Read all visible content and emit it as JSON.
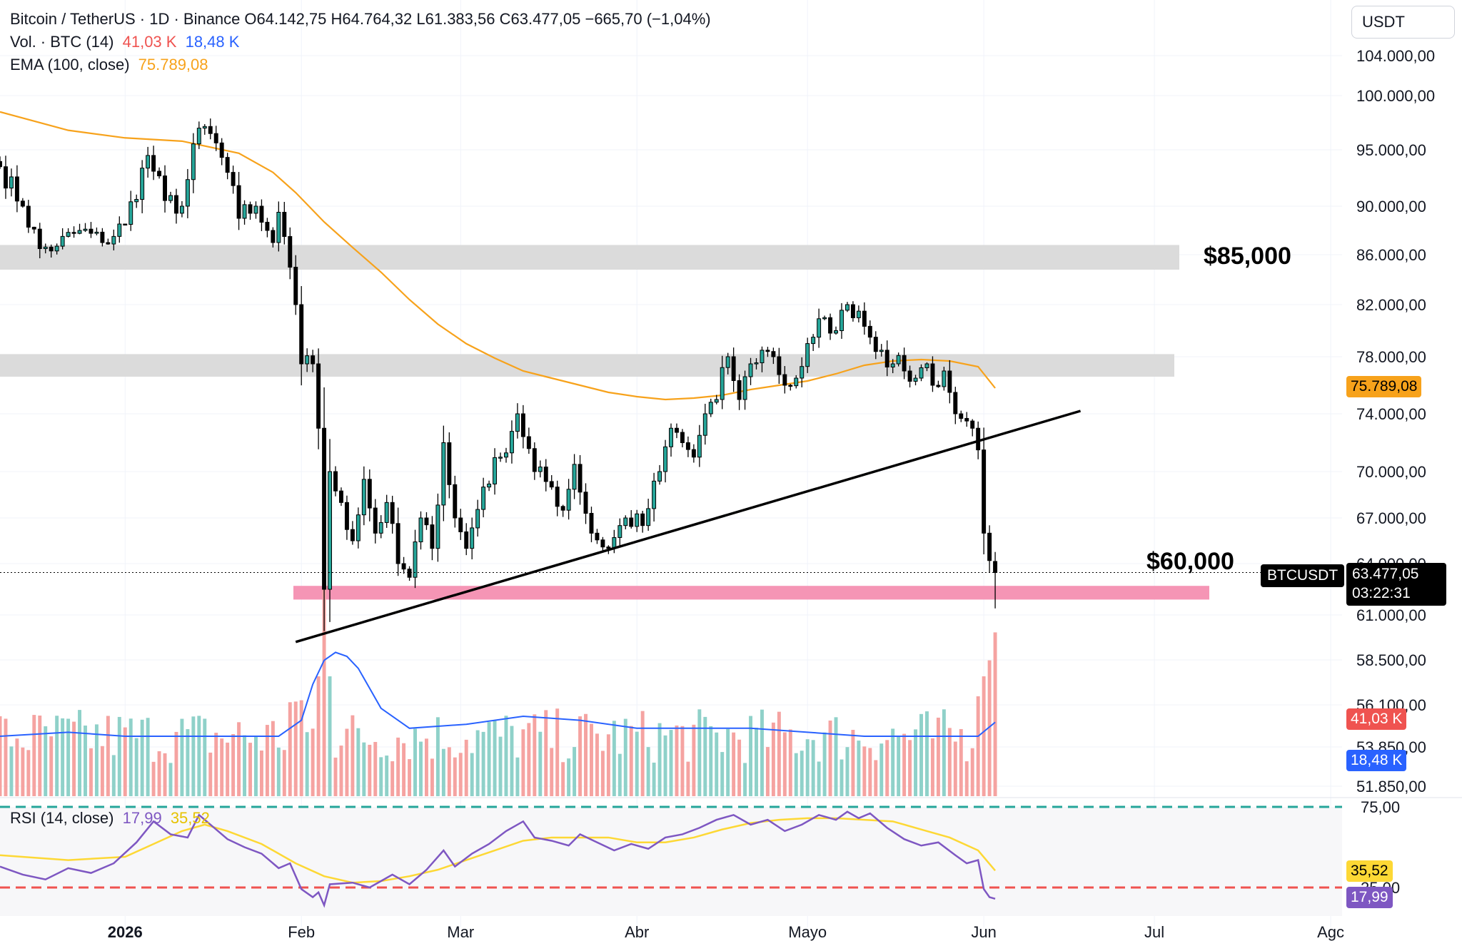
{
  "legend": {
    "symbol": "Bitcoin / TetherUS · 1D · Binance",
    "ohlc": "O64.142,75  H64.764,32  L61.383,56  C63.477,05  −665,70 (−1,04%)",
    "vol_label": "Vol. · BTC (14)",
    "vol_value": "41,03 K",
    "vol_ma": "18,48 K",
    "ema_label": "EMA (100, close)",
    "ema_value": "75.789,08",
    "rsi_label": "RSI (14, close)",
    "rsi_value": "17,99",
    "rsi_ma": "35,52"
  },
  "currency": "USDT",
  "annotations": {
    "level_high": "$85,000",
    "level_low": "$60,000"
  },
  "tags": {
    "ema": "75.789,08",
    "symbol": "BTCUSDT",
    "price": "63.477,05",
    "countdown": "03:22:31",
    "vol": "41,03 K",
    "vol_ma": "18,48 K",
    "rsi_ma": "35,52",
    "rsi": "17,99"
  },
  "colors": {
    "up": "#26a69a",
    "down": "#ef5350",
    "ema": "#f7a21b",
    "rsi": "#7e57c2",
    "rsi_ma": "#fdd835",
    "vol_ma": "#2962ff",
    "zone_grey": "#d9d9d9",
    "zone_pink": "#f48fb1"
  },
  "chart_data": {
    "type": "candlestick",
    "x_ticks": [
      {
        "label": "2026",
        "x": 0,
        "bold": true
      },
      {
        "label": "Feb",
        "x": 31
      },
      {
        "label": "Mar",
        "x": 59
      },
      {
        "label": "Abr",
        "x": 90
      },
      {
        "label": "Mayo",
        "x": 120
      },
      {
        "label": "Jun",
        "x": 151
      },
      {
        "label": "Jul",
        "x": 181
      },
      {
        "label": "Agc",
        "x": 212
      }
    ],
    "x_range": [
      -22,
      214
    ],
    "y_ticks": [
      {
        "value": 104000,
        "label": "104.000,00"
      },
      {
        "value": 100000,
        "label": "100.000,00"
      },
      {
        "value": 95000,
        "label": "95.000,00"
      },
      {
        "value": 90000,
        "label": "90.000,00"
      },
      {
        "value": 86000,
        "label": "86.000,00"
      },
      {
        "value": 82000,
        "label": "82.000,00"
      },
      {
        "value": 78000,
        "label": "78.000,00"
      },
      {
        "value": 74000,
        "label": "74.000,00"
      },
      {
        "value": 70000,
        "label": "70.000,00"
      },
      {
        "value": 67000,
        "label": "67.000,00"
      },
      {
        "value": 64000,
        "label": "64.000,00"
      },
      {
        "value": 61000,
        "label": "61.000,00"
      },
      {
        "value": 58500,
        "label": "58.500,00"
      },
      {
        "value": 56100,
        "label": "56.100,00"
      },
      {
        "value": 53850,
        "label": "53.850,00"
      },
      {
        "value": 51850,
        "label": "51.850,00"
      }
    ],
    "rsi_ticks": [
      {
        "value": 75,
        "label": "75,00"
      },
      {
        "value": 25,
        "label": "25,00"
      }
    ],
    "zones": [
      {
        "from": 84800,
        "to": 86800,
        "color": "#d9d9d9"
      },
      {
        "from": 76600,
        "to": 78200,
        "color": "#d9d9d9"
      },
      {
        "from": 61900,
        "to": 62700,
        "color": "#f48fb1"
      }
    ],
    "trendline": {
      "x1": 30,
      "y1": 59500,
      "x2": 168,
      "y2": 74200
    },
    "last_close": 63477.05,
    "anchors": [
      {
        "x": -22,
        "c": 93500
      },
      {
        "x": -18,
        "c": 90000
      },
      {
        "x": -15,
        "c": 86500
      },
      {
        "x": -12,
        "c": 86700
      },
      {
        "x": -8,
        "c": 88000
      },
      {
        "x": -4,
        "c": 87000
      },
      {
        "x": 0,
        "c": 88500
      },
      {
        "x": 4,
        "c": 94500
      },
      {
        "x": 7,
        "c": 90500
      },
      {
        "x": 10,
        "c": 90000
      },
      {
        "x": 13,
        "c": 97000
      },
      {
        "x": 15,
        "c": 96500
      },
      {
        "x": 18,
        "c": 93000
      },
      {
        "x": 20,
        "c": 89000
      },
      {
        "x": 23,
        "c": 90000
      },
      {
        "x": 25,
        "c": 88000
      },
      {
        "x": 26,
        "c": 87000
      },
      {
        "x": 27,
        "c": 89500
      },
      {
        "x": 28,
        "c": 87500
      },
      {
        "x": 29,
        "c": 85000
      },
      {
        "x": 30,
        "c": 82000
      },
      {
        "x": 31,
        "c": 77500
      },
      {
        "x": 33,
        "c": 77500
      },
      {
        "x": 34,
        "c": 73000
      },
      {
        "x": 35,
        "c": 62500
      },
      {
        "x": 36,
        "c": 70000
      },
      {
        "x": 38,
        "c": 68000
      },
      {
        "x": 40,
        "c": 65500
      },
      {
        "x": 42,
        "c": 69500
      },
      {
        "x": 44,
        "c": 66000
      },
      {
        "x": 46,
        "c": 68000
      },
      {
        "x": 48,
        "c": 64000
      },
      {
        "x": 50,
        "c": 63200
      },
      {
        "x": 52,
        "c": 67000
      },
      {
        "x": 54,
        "c": 65000
      },
      {
        "x": 56,
        "c": 72000
      },
      {
        "x": 58,
        "c": 67000
      },
      {
        "x": 60,
        "c": 65000
      },
      {
        "x": 63,
        "c": 69000
      },
      {
        "x": 66,
        "c": 71000
      },
      {
        "x": 69,
        "c": 74000
      },
      {
        "x": 72,
        "c": 70000
      },
      {
        "x": 75,
        "c": 69000
      },
      {
        "x": 77,
        "c": 67500
      },
      {
        "x": 79,
        "c": 70500
      },
      {
        "x": 82,
        "c": 66000
      },
      {
        "x": 85,
        "c": 65000
      },
      {
        "x": 88,
        "c": 67000
      },
      {
        "x": 91,
        "c": 66500
      },
      {
        "x": 94,
        "c": 70000
      },
      {
        "x": 96,
        "c": 73000
      },
      {
        "x": 98,
        "c": 72000
      },
      {
        "x": 100,
        "c": 71000
      },
      {
        "x": 102,
        "c": 74000
      },
      {
        "x": 104,
        "c": 75000
      },
      {
        "x": 106,
        "c": 78000
      },
      {
        "x": 108,
        "c": 75000
      },
      {
        "x": 110,
        "c": 77500
      },
      {
        "x": 112,
        "c": 78500
      },
      {
        "x": 114,
        "c": 78000
      },
      {
        "x": 116,
        "c": 76000
      },
      {
        "x": 118,
        "c": 76500
      },
      {
        "x": 121,
        "c": 79500
      },
      {
        "x": 123,
        "c": 81000
      },
      {
        "x": 125,
        "c": 80000
      },
      {
        "x": 127,
        "c": 82000
      },
      {
        "x": 129,
        "c": 81500
      },
      {
        "x": 131,
        "c": 79500
      },
      {
        "x": 133,
        "c": 78500
      },
      {
        "x": 135,
        "c": 77500
      },
      {
        "x": 137,
        "c": 77000
      },
      {
        "x": 139,
        "c": 76500
      },
      {
        "x": 141,
        "c": 77500
      },
      {
        "x": 142,
        "c": 76000
      },
      {
        "x": 144,
        "c": 77000
      },
      {
        "x": 145,
        "c": 75500
      },
      {
        "x": 146,
        "c": 74000
      },
      {
        "x": 148,
        "c": 73500
      },
      {
        "x": 149,
        "c": 73000
      },
      {
        "x": 150,
        "c": 71500
      },
      {
        "x": 151,
        "c": 66000
      },
      {
        "x": 152,
        "c": 64200
      },
      {
        "x": 153,
        "c": 63477
      }
    ],
    "ema": [
      [
        -22,
        98500
      ],
      [
        -10,
        96800
      ],
      [
        0,
        96100
      ],
      [
        10,
        95800
      ],
      [
        20,
        94700
      ],
      [
        26,
        93000
      ],
      [
        30,
        91200
      ],
      [
        35,
        88700
      ],
      [
        40,
        86600
      ],
      [
        45,
        84600
      ],
      [
        50,
        82400
      ],
      [
        55,
        80500
      ],
      [
        60,
        79000
      ],
      [
        65,
        77900
      ],
      [
        70,
        77000
      ],
      [
        75,
        76500
      ],
      [
        80,
        76000
      ],
      [
        85,
        75500
      ],
      [
        90,
        75200
      ],
      [
        95,
        75000
      ],
      [
        100,
        75100
      ],
      [
        105,
        75300
      ],
      [
        110,
        75700
      ],
      [
        115,
        76000
      ],
      [
        120,
        76300
      ],
      [
        125,
        76800
      ],
      [
        130,
        77400
      ],
      [
        135,
        77700
      ],
      [
        140,
        77800
      ],
      [
        145,
        77700
      ],
      [
        150,
        77300
      ],
      [
        153,
        75800
      ]
    ],
    "rsi": [
      [
        -22,
        38
      ],
      [
        -18,
        33
      ],
      [
        -14,
        30
      ],
      [
        -10,
        37
      ],
      [
        -6,
        34
      ],
      [
        -2,
        40
      ],
      [
        2,
        53
      ],
      [
        5,
        66
      ],
      [
        8,
        58
      ],
      [
        11,
        56
      ],
      [
        13,
        70
      ],
      [
        15,
        64
      ],
      [
        18,
        55
      ],
      [
        21,
        50
      ],
      [
        24,
        46
      ],
      [
        27,
        37
      ],
      [
        29,
        40
      ],
      [
        31,
        24
      ],
      [
        33,
        19
      ],
      [
        34,
        22
      ],
      [
        35,
        14
      ],
      [
        36,
        27
      ],
      [
        40,
        28
      ],
      [
        43,
        25
      ],
      [
        47,
        33
      ],
      [
        50,
        27
      ],
      [
        53,
        36
      ],
      [
        56,
        48
      ],
      [
        58,
        38
      ],
      [
        61,
        46
      ],
      [
        64,
        52
      ],
      [
        67,
        60
      ],
      [
        70,
        66
      ],
      [
        72,
        56
      ],
      [
        75,
        54
      ],
      [
        78,
        51
      ],
      [
        80,
        58
      ],
      [
        83,
        53
      ],
      [
        86,
        48
      ],
      [
        89,
        52
      ],
      [
        92,
        49
      ],
      [
        95,
        56
      ],
      [
        98,
        58
      ],
      [
        101,
        62
      ],
      [
        104,
        67
      ],
      [
        107,
        70
      ],
      [
        110,
        64
      ],
      [
        113,
        67
      ],
      [
        116,
        60
      ],
      [
        119,
        64
      ],
      [
        122,
        70
      ],
      [
        125,
        67
      ],
      [
        127,
        72
      ],
      [
        129,
        68
      ],
      [
        131,
        71
      ],
      [
        134,
        62
      ],
      [
        137,
        55
      ],
      [
        140,
        51
      ],
      [
        143,
        53
      ],
      [
        146,
        45
      ],
      [
        148,
        40
      ],
      [
        150,
        42
      ],
      [
        151,
        24
      ],
      [
        152,
        19
      ],
      [
        153,
        18
      ]
    ],
    "rsi_ma": [
      [
        -22,
        45
      ],
      [
        -10,
        42
      ],
      [
        0,
        44
      ],
      [
        5,
        52
      ],
      [
        10,
        60
      ],
      [
        14,
        64
      ],
      [
        18,
        60
      ],
      [
        24,
        52
      ],
      [
        30,
        40
      ],
      [
        35,
        32
      ],
      [
        40,
        28
      ],
      [
        45,
        29
      ],
      [
        50,
        32
      ],
      [
        55,
        36
      ],
      [
        60,
        42
      ],
      [
        65,
        48
      ],
      [
        70,
        54
      ],
      [
        75,
        56
      ],
      [
        80,
        56
      ],
      [
        85,
        56
      ],
      [
        90,
        53
      ],
      [
        95,
        53
      ],
      [
        100,
        56
      ],
      [
        105,
        61
      ],
      [
        110,
        65
      ],
      [
        115,
        67
      ],
      [
        120,
        68
      ],
      [
        125,
        68
      ],
      [
        130,
        67
      ],
      [
        135,
        66
      ],
      [
        140,
        61
      ],
      [
        145,
        56
      ],
      [
        150,
        48
      ],
      [
        153,
        35.5
      ]
    ],
    "vol_ma": [
      [
        -22,
        15
      ],
      [
        -10,
        16
      ],
      [
        0,
        15
      ],
      [
        10,
        15
      ],
      [
        20,
        15
      ],
      [
        27,
        15
      ],
      [
        31,
        19
      ],
      [
        33,
        28
      ],
      [
        35,
        34
      ],
      [
        37,
        36
      ],
      [
        39,
        35
      ],
      [
        41,
        32
      ],
      [
        43,
        27
      ],
      [
        45,
        22
      ],
      [
        50,
        17
      ],
      [
        60,
        18
      ],
      [
        70,
        20
      ],
      [
        80,
        19
      ],
      [
        90,
        17
      ],
      [
        100,
        17
      ],
      [
        110,
        17
      ],
      [
        120,
        16
      ],
      [
        130,
        15
      ],
      [
        140,
        15
      ],
      [
        150,
        15
      ],
      [
        153,
        18.5
      ]
    ]
  }
}
